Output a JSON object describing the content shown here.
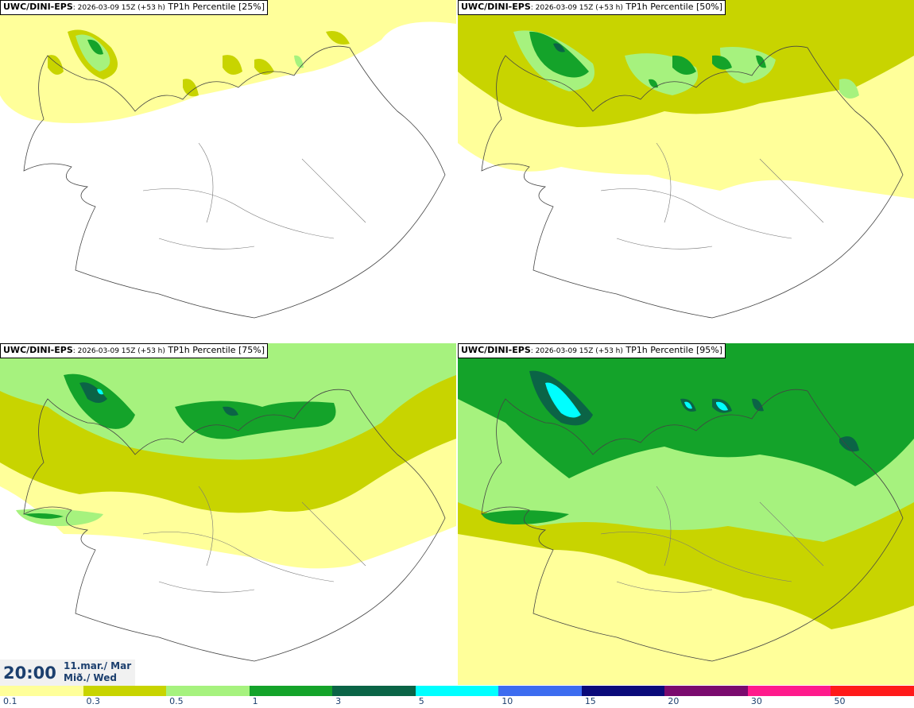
{
  "panels": [
    {
      "model": "UWC/DINI-EPS",
      "run": ": 2026-03-09 15Z (+53 h)",
      "product": " TP1h Percentile [25%]",
      "background": "#ffffff",
      "sea_top": "#ffff9a"
    },
    {
      "model": "UWC/DINI-EPS",
      "run": ": 2026-03-09 15Z (+53 h)",
      "product": " TP1h Percentile [50%]",
      "background": "#ffffff",
      "sea_top": "#c8d400"
    },
    {
      "model": "UWC/DINI-EPS",
      "run": ": 2026-03-09 15Z (+53 h)",
      "product": " TP1h Percentile [75%]",
      "background": "#ffff9a",
      "sea_top": "#a6f27e"
    },
    {
      "model": "UWC/DINI-EPS",
      "run": ": 2026-03-09 15Z (+53 h)",
      "product": " TP1h Percentile [95%]",
      "background": "#c8d400",
      "sea_top": "#14a32a"
    }
  ],
  "valid_time": {
    "time": "20:00",
    "date_line1": "11.mar./ Mar",
    "date_line2": "Mið./ Wed"
  },
  "colorbar": {
    "colors": [
      "#ffff9a",
      "#c8d400",
      "#a6f27e",
      "#14a32a",
      "#0b6446",
      "#00ffff",
      "#3c6cf0",
      "#0a0a7a",
      "#7a0a6e",
      "#ff1a8c",
      "#ff1a1a"
    ],
    "ticks": [
      "0.1",
      "0.3",
      "0.5",
      "1",
      "3",
      "5",
      "10",
      "15",
      "20",
      "30",
      "50"
    ]
  }
}
